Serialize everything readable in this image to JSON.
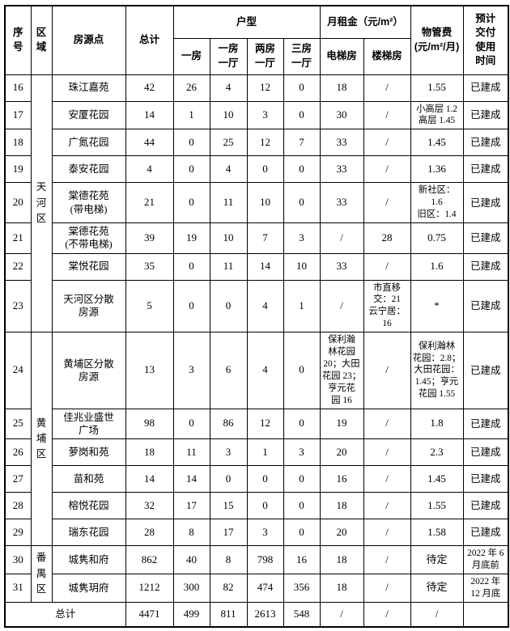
{
  "table": {
    "header": {
      "serial": "序\n号",
      "region": "区\n域",
      "site": "房源点",
      "total": "总计",
      "unit_type_group": "户型",
      "unit_types": [
        "一房",
        "一房\n一厅",
        "两房\n一厅",
        "三房\n一厅"
      ],
      "rent_group": "月租金（元/m²）",
      "rent_types": [
        "电梯房",
        "楼梯房"
      ],
      "fee": "物管费\n(元/m²/月)",
      "delivery": "预计\n交付\n使用\n时间"
    },
    "regions": [
      {
        "label": "天\n河\n区",
        "start": 0,
        "span": 8
      },
      {
        "label": "黄\n埔\n区",
        "start": 8,
        "span": 6
      },
      {
        "label": "番\n禺\n区",
        "start": 14,
        "span": 2
      }
    ],
    "rows": [
      {
        "no": "16",
        "name": "珠江嘉苑",
        "total": "42",
        "one": "26",
        "one_hall": "4",
        "two_hall": "12",
        "three_hall": "0",
        "elevator": "18",
        "stair": "/",
        "fee": "1.55",
        "delivery": "已建成"
      },
      {
        "no": "17",
        "name": "安厦花园",
        "total": "14",
        "one": "1",
        "one_hall": "10",
        "two_hall": "3",
        "three_hall": "0",
        "elevator": "30",
        "stair": "/",
        "fee": "小高层 1.2\n高层 1.45",
        "delivery": "已建成"
      },
      {
        "no": "18",
        "name": "广氮花园",
        "total": "44",
        "one": "0",
        "one_hall": "25",
        "two_hall": "12",
        "three_hall": "7",
        "elevator": "33",
        "stair": "/",
        "fee": "1.45",
        "delivery": "已建成"
      },
      {
        "no": "19",
        "name": "泰安花园",
        "total": "4",
        "one": "0",
        "one_hall": "4",
        "two_hall": "0",
        "three_hall": "0",
        "elevator": "33",
        "stair": "/",
        "fee": "1.36",
        "delivery": "已建成"
      },
      {
        "no": "20",
        "name": "棠德花苑\n(带电梯)",
        "total": "21",
        "one": "0",
        "one_hall": "11",
        "two_hall": "10",
        "three_hall": "0",
        "elevator": "33",
        "stair": "/",
        "fee": "新社区：\n1.6\n旧区：1.4",
        "delivery": "已建成"
      },
      {
        "no": "21",
        "name": "棠德花苑\n(不带电梯)",
        "total": "39",
        "one": "19",
        "one_hall": "10",
        "two_hall": "7",
        "three_hall": "3",
        "elevator": "/",
        "stair": "28",
        "fee": "0.75",
        "delivery": "已建成"
      },
      {
        "no": "22",
        "name": "棠悦花园",
        "total": "35",
        "one": "0",
        "one_hall": "11",
        "two_hall": "14",
        "three_hall": "10",
        "elevator": "33",
        "stair": "/",
        "fee": "1.6",
        "delivery": "已建成"
      },
      {
        "no": "23",
        "name": "天河区分散\n房源",
        "total": "5",
        "one": "0",
        "one_hall": "0",
        "two_hall": "4",
        "three_hall": "1",
        "elevator": "/",
        "stair": "市直移\n交：21\n云宁居：\n16",
        "fee": "*",
        "delivery": "已建成"
      },
      {
        "no": "24",
        "name": "黄埔区分散\n房源",
        "total": "13",
        "one": "3",
        "one_hall": "6",
        "two_hall": "4",
        "three_hall": "0",
        "elevator": "保利瀚\n林花园\n20；大田\n花园 23；\n亨元花\n园 16",
        "stair": "/",
        "fee": "保利瀚林\n花园：2.8；\n大田花园：\n1.45；亨元\n花园 1.55",
        "delivery": "已建成"
      },
      {
        "no": "25",
        "name": "佳兆业盛世\n广场",
        "total": "98",
        "one": "0",
        "one_hall": "86",
        "two_hall": "12",
        "three_hall": "0",
        "elevator": "19",
        "stair": "/",
        "fee": "1.8",
        "delivery": "已建成"
      },
      {
        "no": "26",
        "name": "萝岗和苑",
        "total": "18",
        "one": "11",
        "one_hall": "3",
        "two_hall": "1",
        "three_hall": "3",
        "elevator": "20",
        "stair": "/",
        "fee": "2.3",
        "delivery": "已建成"
      },
      {
        "no": "27",
        "name": "苗和苑",
        "total": "14",
        "one": "14",
        "one_hall": "0",
        "two_hall": "0",
        "three_hall": "0",
        "elevator": "16",
        "stair": "/",
        "fee": "1.45",
        "delivery": "已建成"
      },
      {
        "no": "28",
        "name": "榕悦花园",
        "total": "32",
        "one": "17",
        "one_hall": "15",
        "two_hall": "0",
        "three_hall": "0",
        "elevator": "18",
        "stair": "/",
        "fee": "1.55",
        "delivery": "已建成"
      },
      {
        "no": "29",
        "name": "瑞东花园",
        "total": "28",
        "one": "8",
        "one_hall": "17",
        "two_hall": "3",
        "three_hall": "0",
        "elevator": "20",
        "stair": "/",
        "fee": "1.58",
        "delivery": "已建成"
      },
      {
        "no": "30",
        "name": "城隽和府",
        "total": "862",
        "one": "40",
        "one_hall": "8",
        "two_hall": "798",
        "three_hall": "16",
        "elevator": "18",
        "stair": "/",
        "fee": "待定",
        "delivery": "2022 年 6\n月底前"
      },
      {
        "no": "31",
        "name": "城隽玥府",
        "total": "1212",
        "one": "300",
        "one_hall": "82",
        "two_hall": "474",
        "three_hall": "356",
        "elevator": "18",
        "stair": "/",
        "fee": "待定",
        "delivery": "2022 年\n12 月底"
      }
    ],
    "total_row": {
      "label": "总计",
      "total": "4471",
      "one": "499",
      "one_hall": "811",
      "two_hall": "2613",
      "three_hall": "548",
      "elevator": "/",
      "stair": "/",
      "fee": "/",
      "delivery": ""
    }
  }
}
